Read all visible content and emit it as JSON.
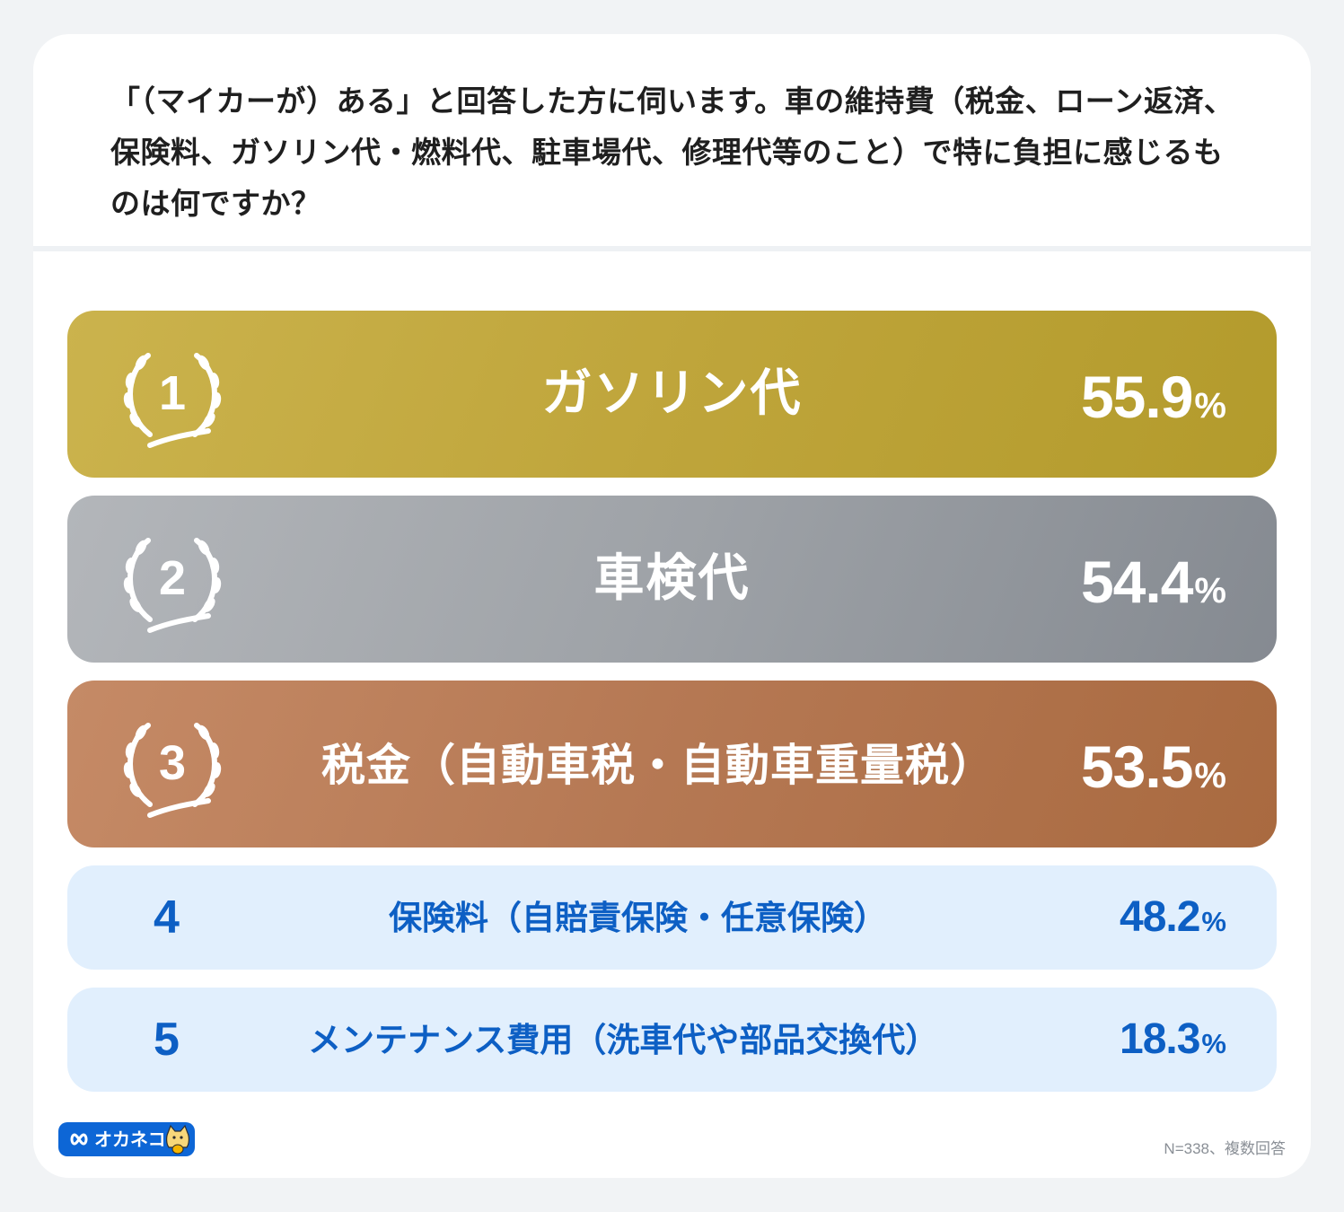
{
  "question": "「（マイカーが）ある」と回答した方に伺います。車の維持費（税金、ローン返済、保険料、ガソリン代・燃料代、駐車場代、修理代等のこと）で特に負担に感じるものは何ですか？",
  "percent_sign": "%",
  "colors": {
    "gold": "#bfa53b",
    "silver": "#9ea2a7",
    "bronze": "#b57853",
    "light_blue": "#e1effd",
    "blue_text": "#0d5fc4"
  },
  "chart_data": {
    "type": "table",
    "title": "「（マイカーが）ある」と回答した方に伺います。車の維持費（税金、ローン返済、保険料、ガソリン代・燃料代、駐車場代、修理代等のこと）で特に負担に感じるものは何ですか？",
    "columns": [
      "rank",
      "item",
      "percent"
    ],
    "rows": [
      {
        "rank": "1",
        "item": "ガソリン代",
        "value": "55.9"
      },
      {
        "rank": "2",
        "item": "車検代",
        "value": "54.4"
      },
      {
        "rank": "3",
        "item": "税金（自動車税・自動車重量税）",
        "value": "53.5"
      },
      {
        "rank": "4",
        "item": "保険料（自賠責保険・任意保険）",
        "value": "48.2"
      },
      {
        "rank": "5",
        "item": "メンテナンス費用（洗車代や部品交換代）",
        "value": "18.3"
      }
    ],
    "unit": "%"
  },
  "footer": {
    "logo_text": "オカネコ",
    "note": "N=338、複数回答"
  },
  "icons": {
    "laurel": "laurel-wreath-icon",
    "logo_mark": "infinity-icon",
    "logo_cat": "cat-mascot-icon"
  }
}
